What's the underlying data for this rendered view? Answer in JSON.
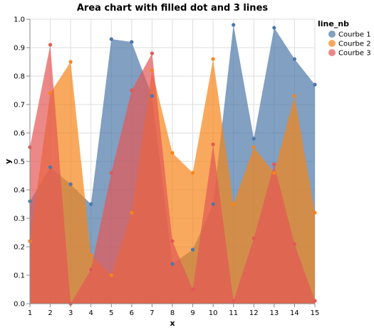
{
  "chart_data": {
    "type": "area",
    "title": "Area chart with filled dot and 3 lines",
    "xlabel": "x",
    "ylabel": "y",
    "xlim": [
      1,
      15
    ],
    "ylim": [
      0,
      1
    ],
    "x": [
      1,
      2,
      3,
      4,
      5,
      6,
      7,
      8,
      9,
      10,
      11,
      12,
      13,
      14,
      15
    ],
    "x_ticks": [
      "1",
      "2",
      "3",
      "4",
      "5",
      "6",
      "7",
      "8",
      "9",
      "10",
      "11",
      "12",
      "13",
      "14",
      "15"
    ],
    "y_ticks": [
      "0.0",
      "0.1",
      "0.2",
      "0.3",
      "0.4",
      "0.5",
      "0.6",
      "0.7",
      "0.8",
      "0.9",
      "1.0"
    ],
    "grid": true,
    "legend": {
      "title": "line_nb",
      "placement": "top-right"
    },
    "series": [
      {
        "name": "Courbe 1",
        "color": "#4c78a8",
        "values": [
          0.36,
          0.48,
          0.42,
          0.35,
          0.93,
          0.92,
          0.73,
          0.14,
          0.19,
          0.35,
          0.98,
          0.58,
          0.97,
          0.86,
          0.77
        ]
      },
      {
        "name": "Courbe 2",
        "color": "#f58518",
        "values": [
          0.22,
          0.74,
          0.85,
          0.17,
          0.1,
          0.32,
          0.82,
          0.53,
          0.46,
          0.86,
          0.35,
          0.55,
          0.46,
          0.73,
          0.32
        ]
      },
      {
        "name": "Courbe 3",
        "color": "#e45756",
        "values": [
          0.55,
          0.91,
          0.0,
          0.12,
          0.46,
          0.75,
          0.88,
          0.22,
          0.05,
          0.56,
          0.01,
          0.23,
          0.49,
          0.21,
          0.01
        ]
      }
    ]
  }
}
